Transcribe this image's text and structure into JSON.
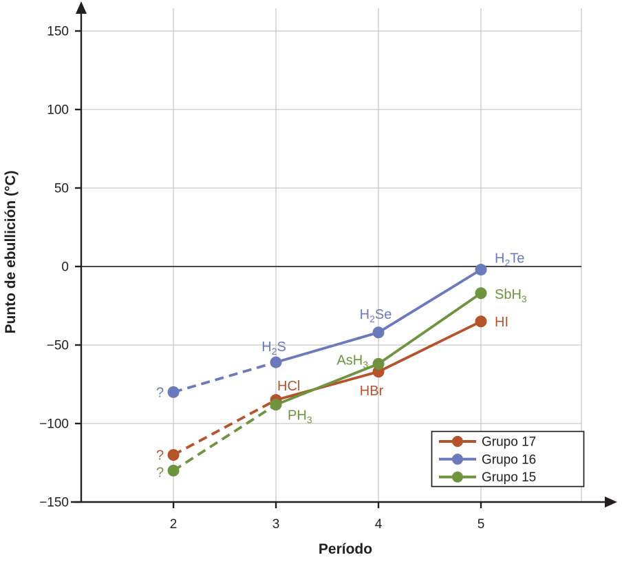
{
  "chart_data": {
    "type": "line",
    "title": "",
    "xlabel": "Período",
    "ylabel": "Punto de ebullición (°C)",
    "xlim": [
      1.1,
      5.98
    ],
    "ylim": [
      -150,
      150
    ],
    "grid": true,
    "legend_position": "bottom-right",
    "colors": {
      "axis": "#231f20",
      "grid": "#bdbdbd",
      "zero_line": "#2e2d2c",
      "background": "#ffffff"
    },
    "x_ticks": [
      {
        "value": 2,
        "label": "2"
      },
      {
        "value": 3,
        "label": "3"
      },
      {
        "value": 4,
        "label": "4"
      },
      {
        "value": 5,
        "label": "5"
      }
    ],
    "y_ticks": [
      {
        "value": 150,
        "label": "150"
      },
      {
        "value": 100,
        "label": "100"
      },
      {
        "value": 50,
        "label": "50"
      },
      {
        "value": 0,
        "label": "0"
      },
      {
        "value": -50,
        "label": "−50"
      },
      {
        "value": -100,
        "label": "−100"
      },
      {
        "value": -150,
        "label": "−150"
      }
    ],
    "series": [
      {
        "name": "Grupo 17",
        "color": "#b5532c",
        "first_segment_dashed": true,
        "points": [
          {
            "x": 2,
            "y": -120,
            "label": "?",
            "dx": -14,
            "dy": 7,
            "anchor": "end"
          },
          {
            "x": 3,
            "y": -85,
            "label": "HCl",
            "dx": 2,
            "dy": -14,
            "anchor": "start"
          },
          {
            "x": 4,
            "y": -67,
            "label": "HBr",
            "dx": -10,
            "dy": 34,
            "anchor": "middle"
          },
          {
            "x": 5,
            "y": -35,
            "label": "HI",
            "dx": 20,
            "dy": 7,
            "anchor": "start"
          }
        ]
      },
      {
        "name": "Grupo 16",
        "color": "#6b79bd",
        "first_segment_dashed": true,
        "points": [
          {
            "x": 2,
            "y": -80,
            "label": "?",
            "dx": -14,
            "dy": 7,
            "anchor": "end"
          },
          {
            "x": 3,
            "y": -61,
            "label": "H~2~S",
            "dx": -3,
            "dy": -16,
            "anchor": "middle"
          },
          {
            "x": 4,
            "y": -42,
            "label": "H~2~Se",
            "dx": -4,
            "dy": -20,
            "anchor": "middle"
          },
          {
            "x": 5,
            "y": -2,
            "label": "H~2~Te",
            "dx": 20,
            "dy": -10,
            "anchor": "start"
          }
        ]
      },
      {
        "name": "Grupo 15",
        "color": "#6f9440",
        "first_segment_dashed": true,
        "points": [
          {
            "x": 2,
            "y": -130,
            "label": "?",
            "dx": -14,
            "dy": 9,
            "anchor": "end"
          },
          {
            "x": 3,
            "y": -88,
            "label": "PH~3~",
            "dx": 17,
            "dy": 22,
            "anchor": "start"
          },
          {
            "x": 4,
            "y": -62,
            "label": "AsH~3~",
            "dx": -15,
            "dy": 1,
            "anchor": "end"
          },
          {
            "x": 5,
            "y": -17,
            "label": "SbH~3~",
            "dx": 20,
            "dy": 8,
            "anchor": "start"
          }
        ]
      }
    ],
    "legend": {
      "entries": [
        "Grupo 17",
        "Grupo 16",
        "Grupo 15"
      ]
    }
  }
}
